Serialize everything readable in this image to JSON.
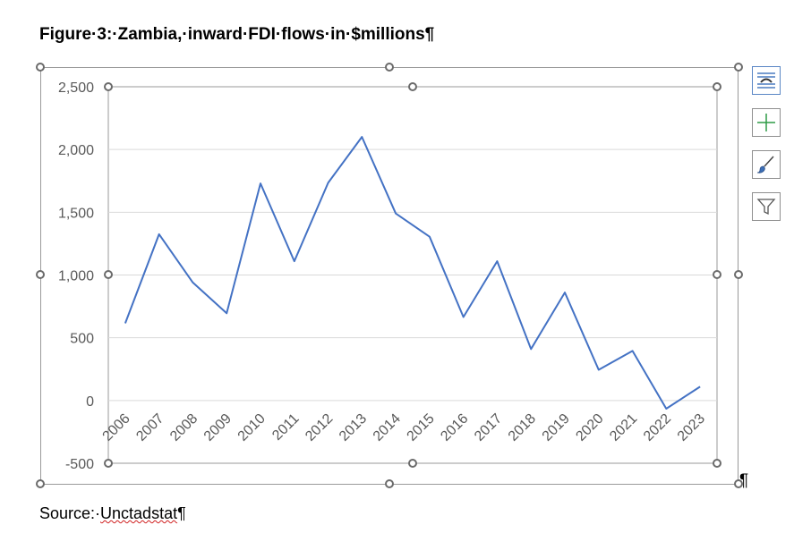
{
  "document": {
    "heading": "Figure·3:·Zambia,·inward·FDI·flows·in·$millions¶",
    "source_prefix": "Source:·",
    "source_name": "Unctadstat",
    "source_mark": "¶",
    "end_mark": "¶"
  },
  "side_buttons": [
    {
      "name": "layout-options-icon",
      "label": "Layout Options"
    },
    {
      "name": "chart-elements-icon",
      "label": "Chart Elements"
    },
    {
      "name": "chart-styles-icon",
      "label": "Chart Styles"
    },
    {
      "name": "chart-filters-icon",
      "label": "Chart Filters"
    }
  ],
  "colors": {
    "series": "#4472c4",
    "gridline": "#d9d9d9",
    "axis_text": "#595959",
    "handle": "#6b6b6b"
  },
  "chart_data": {
    "type": "line",
    "title": "",
    "xlabel": "",
    "ylabel": "",
    "categories": [
      "2006",
      "2007",
      "2008",
      "2009",
      "2010",
      "2011",
      "2012",
      "2013",
      "2014",
      "2015",
      "2016",
      "2017",
      "2018",
      "2019",
      "2020",
      "2021",
      "2022",
      "2023"
    ],
    "series": [
      {
        "values": [
          615,
          1325,
          940,
          695,
          1730,
          1110,
          1735,
          2100,
          1490,
          1305,
          665,
          1110,
          410,
          860,
          245,
          395,
          -65,
          110
        ]
      }
    ],
    "ylim": [
      -500,
      2500
    ],
    "yticks": [
      -500,
      0,
      500,
      1000,
      1500,
      2000,
      2500
    ],
    "ytick_labels": [
      "-500",
      "0",
      "500",
      "1,000",
      "1,500",
      "2,000",
      "2,500"
    ],
    "grid": true,
    "legend": "none"
  }
}
